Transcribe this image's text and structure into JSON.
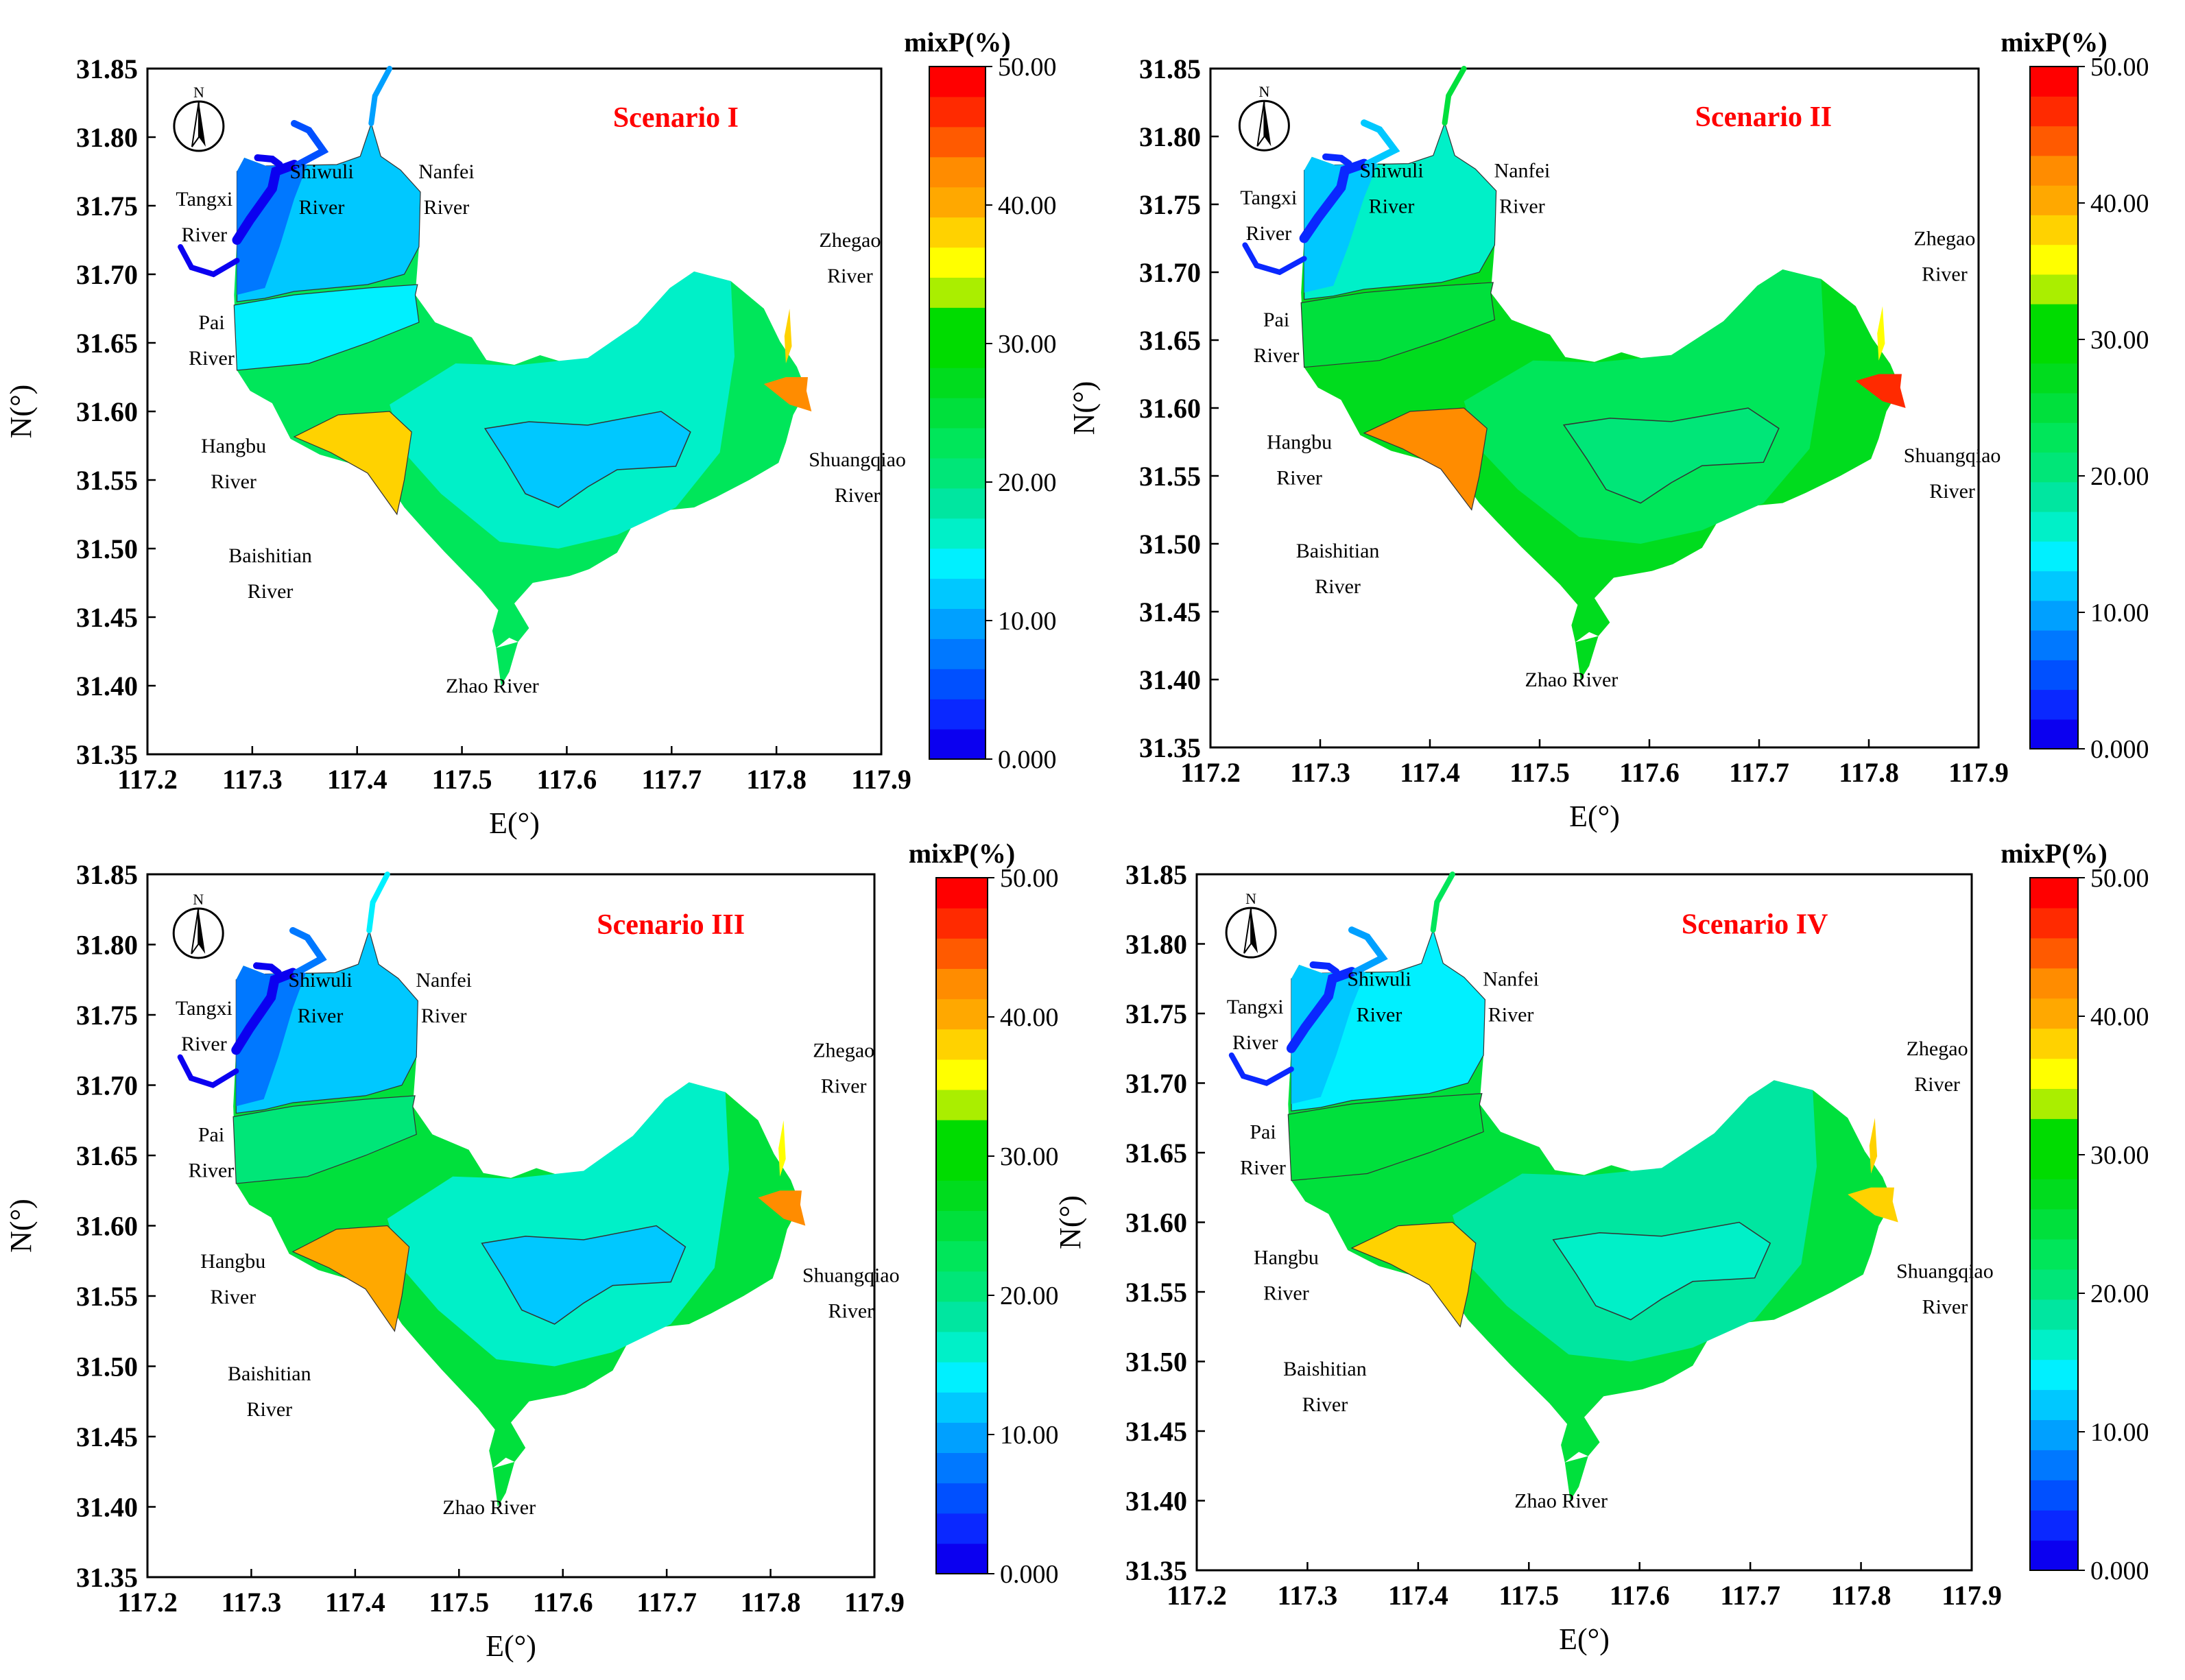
{
  "scale_colors": [
    "#0b00f0",
    "#0a28ff",
    "#0050ff",
    "#0078ff",
    "#00a0ff",
    "#00c8ff",
    "#00f0ff",
    "#00f0c8",
    "#00e6a0",
    "#00e678",
    "#00e65a",
    "#00e03c",
    "#00dc1e",
    "#00dc00",
    "#00dc00",
    "#aaee00",
    "#ffff00",
    "#ffd200",
    "#ffa800",
    "#ff8c00",
    "#ff5a00",
    "#ff2a00",
    "#ff0000"
  ],
  "colorbar": {
    "title": "mixP(%)",
    "tick_labels": [
      "50.00",
      "40.00",
      "30.00",
      "20.00",
      "10.00",
      "0.000"
    ]
  },
  "axes": {
    "x_title": "E(°)",
    "y_title": "N(°)",
    "x_ticks": [
      "117.2",
      "117.3",
      "117.4",
      "117.5",
      "117.6",
      "117.7",
      "117.8",
      "117.9"
    ],
    "y_ticks": [
      "31.85",
      "31.80",
      "31.75",
      "31.70",
      "31.65",
      "31.60",
      "31.55",
      "31.50",
      "31.45",
      "31.40",
      "31.35"
    ],
    "x_range": [
      117.2,
      117.9
    ],
    "y_range": [
      31.35,
      31.85
    ]
  },
  "compass_label": "N",
  "rivers": [
    {
      "lines": [
        "Tangxi",
        "River"
      ]
    },
    {
      "lines": [
        "Shiwuli",
        "River"
      ]
    },
    {
      "lines": [
        "Nanfei",
        "River"
      ]
    },
    {
      "lines": [
        "Zhegao",
        "River"
      ]
    },
    {
      "lines": [
        "Pai",
        "River"
      ]
    },
    {
      "lines": [
        "Hangbu",
        "River"
      ]
    },
    {
      "lines": [
        "Baishitian",
        "River"
      ]
    },
    {
      "lines": [
        "Shuangqiao",
        "River"
      ]
    },
    {
      "lines": [
        "Zhao River"
      ]
    }
  ],
  "panels": [
    {
      "scenario": "Scenario I",
      "zones": {
        "nw": 8,
        "north": 11,
        "w_band": 15,
        "se_east": 23,
        "centre": 17,
        "core": 12,
        "baishitian": 37,
        "east_ext": 42,
        "zhegao": 37,
        "rivers_w": 2,
        "rivers_n": 6,
        "nanfei": 10
      }
    },
    {
      "scenario": "Scenario II",
      "zones": {
        "nw": 12,
        "north": 16,
        "w_band": 25,
        "se_east": 27,
        "centre": 23,
        "core": 20,
        "baishitian": 42,
        "east_ext": 47,
        "zhegao": 35,
        "rivers_w": 3,
        "rivers_n": 11,
        "nanfei": 25
      }
    },
    {
      "scenario": "Scenario III",
      "zones": {
        "nw": 8,
        "north": 12,
        "w_band": 20,
        "se_east": 24,
        "centre": 17,
        "core": 13,
        "baishitian": 40,
        "east_ext": 42,
        "zhegao": 35,
        "rivers_w": 2,
        "rivers_n": 7,
        "nanfei": 15
      }
    },
    {
      "scenario": "Scenario IV",
      "zones": {
        "nw": 11,
        "north": 15,
        "w_band": 25,
        "se_east": 25,
        "centre": 19,
        "core": 17,
        "baishitian": 37,
        "east_ext": 37,
        "zhegao": 37,
        "rivers_w": 3,
        "rivers_n": 10,
        "nanfei": 22
      }
    }
  ]
}
